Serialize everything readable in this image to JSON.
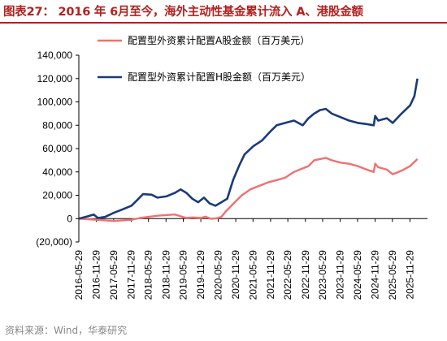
{
  "title": "图表27：  2016 年 6月至今，海外主动性基金累计流入 A、港股金额",
  "source": "资料来源：Wind，华泰研究",
  "colors": {
    "title": "#b51f1f",
    "series_a": "#f07070",
    "series_h": "#1a3a7a"
  },
  "chart_data": {
    "type": "line",
    "title": "",
    "xlabel": "",
    "ylabel": "",
    "ylim": [
      -20000,
      140000
    ],
    "y_ticks": [
      -20000,
      0,
      20000,
      40000,
      60000,
      80000,
      100000,
      120000,
      140000
    ],
    "y_tick_labels": [
      "(20,000)",
      "0",
      "20,000",
      "40,000",
      "60,000",
      "80,000",
      "100,000",
      "120,000",
      "140,000"
    ],
    "x_tick_labels": [
      "2016-05-29",
      "2016-11-29",
      "2017-05-29",
      "2017-11-29",
      "2018-05-29",
      "2018-11-29",
      "2019-05-29",
      "2019-11-29",
      "2020-05-29",
      "2020-11-29",
      "2021-05-29",
      "2021-11-29",
      "2022-05-29",
      "2022-11-29",
      "2023-05-29",
      "2023-11-29",
      "2024-05-29",
      "2024-11-29",
      "2025-05-29",
      "2025-11-29"
    ],
    "legend_position": "top-left",
    "grid": false,
    "series": [
      {
        "name": "配置型外资累计配置A股金额（百万美元）",
        "color": "#f07070",
        "points": [
          [
            "2016-06-01",
            0
          ],
          [
            "2016-09-01",
            -500
          ],
          [
            "2016-12-01",
            -1000
          ],
          [
            "2017-03-01",
            -1500
          ],
          [
            "2017-06-01",
            -2000
          ],
          [
            "2017-09-01",
            -1500
          ],
          [
            "2017-12-01",
            -1000
          ],
          [
            "2018-03-01",
            500
          ],
          [
            "2018-06-01",
            1500
          ],
          [
            "2018-09-01",
            2500
          ],
          [
            "2018-12-01",
            3000
          ],
          [
            "2019-03-01",
            3500
          ],
          [
            "2019-05-01",
            2000
          ],
          [
            "2019-07-01",
            500
          ],
          [
            "2019-09-01",
            1000
          ],
          [
            "2019-12-01",
            500
          ],
          [
            "2020-01-15",
            1800
          ],
          [
            "2020-03-15",
            -200
          ],
          [
            "2020-05-15",
            300
          ],
          [
            "2020-07-01",
            1500
          ],
          [
            "2020-08-15",
            6000
          ],
          [
            "2020-10-01",
            10000
          ],
          [
            "2020-12-01",
            15000
          ],
          [
            "2021-02-01",
            20000
          ],
          [
            "2021-05-01",
            25000
          ],
          [
            "2021-08-01",
            28000
          ],
          [
            "2021-11-01",
            31000
          ],
          [
            "2022-02-01",
            33000
          ],
          [
            "2022-05-01",
            35000
          ],
          [
            "2022-08-01",
            40000
          ],
          [
            "2022-11-01",
            43000
          ],
          [
            "2023-01-01",
            45000
          ],
          [
            "2023-03-01",
            50000
          ],
          [
            "2023-05-01",
            51000
          ],
          [
            "2023-07-01",
            52000
          ],
          [
            "2023-09-01",
            50000
          ],
          [
            "2023-12-01",
            48000
          ],
          [
            "2024-03-01",
            47000
          ],
          [
            "2024-06-01",
            45000
          ],
          [
            "2024-09-01",
            42000
          ],
          [
            "2024-11-15",
            40000
          ],
          [
            "2024-11-29",
            47000
          ],
          [
            "2025-01-01",
            44000
          ],
          [
            "2025-04-01",
            42000
          ],
          [
            "2025-06-01",
            38000
          ],
          [
            "2025-09-01",
            41000
          ],
          [
            "2025-12-01",
            45000
          ],
          [
            "2026-02-15",
            51000
          ]
        ]
      },
      {
        "name": "配置型外资累计配置H股金额（百万美元）",
        "color": "#1a3a7a",
        "points": [
          [
            "2016-06-01",
            0
          ],
          [
            "2016-09-01",
            2000
          ],
          [
            "2016-11-01",
            3500
          ],
          [
            "2016-12-15",
            500
          ],
          [
            "2017-03-01",
            1500
          ],
          [
            "2017-06-01",
            5000
          ],
          [
            "2017-09-01",
            8000
          ],
          [
            "2017-12-01",
            11000
          ],
          [
            "2018-02-01",
            16000
          ],
          [
            "2018-04-01",
            21000
          ],
          [
            "2018-07-01",
            20500
          ],
          [
            "2018-09-01",
            18000
          ],
          [
            "2018-12-01",
            19000
          ],
          [
            "2019-03-01",
            22000
          ],
          [
            "2019-05-01",
            25000
          ],
          [
            "2019-07-01",
            22000
          ],
          [
            "2019-09-01",
            17000
          ],
          [
            "2019-11-01",
            14000
          ],
          [
            "2020-01-01",
            18000
          ],
          [
            "2020-03-01",
            13000
          ],
          [
            "2020-05-01",
            11000
          ],
          [
            "2020-07-01",
            14000
          ],
          [
            "2020-09-01",
            17000
          ],
          [
            "2020-11-01",
            33000
          ],
          [
            "2021-01-01",
            45000
          ],
          [
            "2021-03-01",
            55000
          ],
          [
            "2021-06-01",
            62000
          ],
          [
            "2021-09-01",
            67000
          ],
          [
            "2021-12-01",
            75000
          ],
          [
            "2022-02-01",
            80000
          ],
          [
            "2022-05-01",
            82000
          ],
          [
            "2022-08-01",
            84000
          ],
          [
            "2022-11-01",
            80000
          ],
          [
            "2023-01-01",
            86000
          ],
          [
            "2023-03-01",
            90000
          ],
          [
            "2023-05-01",
            93000
          ],
          [
            "2023-07-01",
            94000
          ],
          [
            "2023-09-01",
            90000
          ],
          [
            "2023-12-01",
            87000
          ],
          [
            "2024-03-01",
            84000
          ],
          [
            "2024-06-01",
            82000
          ],
          [
            "2024-09-01",
            81000
          ],
          [
            "2024-11-15",
            80000
          ],
          [
            "2024-11-29",
            88000
          ],
          [
            "2025-01-01",
            84000
          ],
          [
            "2025-04-01",
            86000
          ],
          [
            "2025-06-01",
            82000
          ],
          [
            "2025-09-01",
            90000
          ],
          [
            "2025-12-01",
            97000
          ],
          [
            "2026-01-15",
            105000
          ],
          [
            "2026-02-15",
            120000
          ]
        ]
      }
    ]
  }
}
